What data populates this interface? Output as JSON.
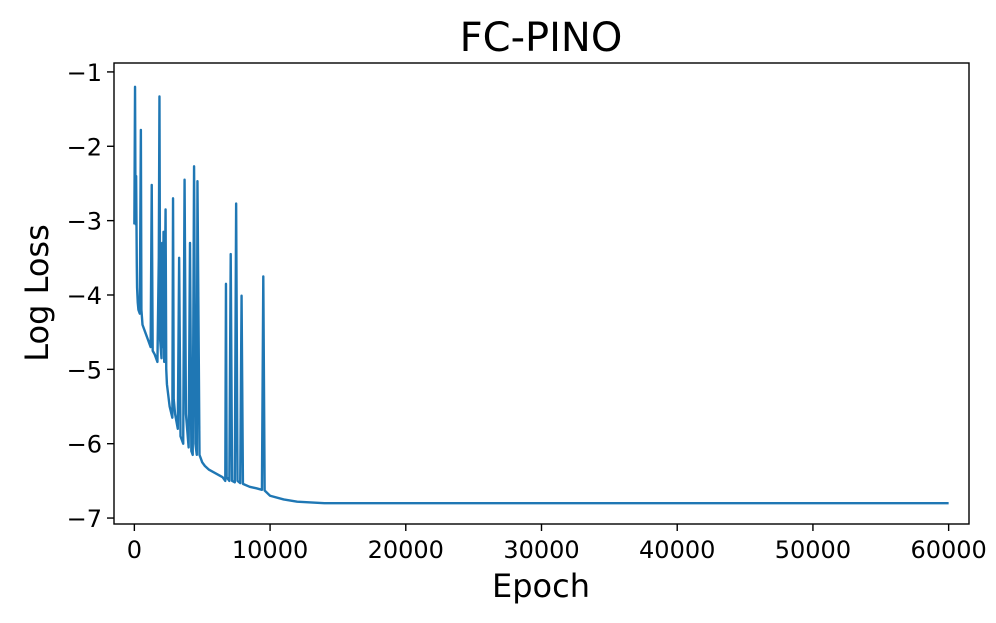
{
  "chart_data": {
    "type": "line",
    "title": "FC-PINO",
    "xlabel": "Epoch",
    "ylabel": "Log Loss",
    "xlim": [
      -1500,
      61500
    ],
    "ylim": [
      -7.08,
      -0.88
    ],
    "xticks": [
      0,
      10000,
      20000,
      30000,
      40000,
      50000,
      60000
    ],
    "xtick_labels": [
      "0",
      "10000",
      "20000",
      "30000",
      "40000",
      "50000",
      "60000"
    ],
    "yticks": [
      -1,
      -2,
      -3,
      -4,
      -5,
      -6,
      -7
    ],
    "ytick_labels": [
      "−1",
      "−2",
      "−3",
      "−4",
      "−5",
      "−6",
      "−7"
    ],
    "grid": false,
    "series": [
      {
        "color": "#1f77b4",
        "x": [
          0,
          50,
          80,
          100,
          130,
          180,
          200,
          250,
          300,
          400,
          480,
          520,
          600,
          800,
          1000,
          1100,
          1200,
          1280,
          1350,
          1500,
          1600,
          1700,
          1800,
          1850,
          1900,
          2000,
          2050,
          2100,
          2150,
          2200,
          2300,
          2350,
          2400,
          2600,
          2800,
          2850,
          2900,
          3000,
          3200,
          3300,
          3400,
          3600,
          3700,
          3800,
          4000,
          4100,
          4200,
          4300,
          4400,
          4500,
          4600,
          4650,
          4800,
          4900,
          5000,
          5200,
          5500,
          6000,
          6500,
          6700,
          6750,
          6800,
          7000,
          7100,
          7200,
          7400,
          7500,
          7600,
          7800,
          7900,
          8000,
          8500,
          9000,
          9400,
          9500,
          9600,
          10000,
          11000,
          12000,
          13000,
          14000,
          15000,
          20000,
          30000,
          40000,
          50000,
          60000
        ],
        "y": [
          -3.05,
          -1.2,
          -2.6,
          -3.05,
          -2.4,
          -3.6,
          -3.9,
          -4.1,
          -4.2,
          -4.25,
          -1.78,
          -4.2,
          -4.4,
          -4.5,
          -4.6,
          -4.65,
          -4.7,
          -2.52,
          -4.75,
          -4.8,
          -4.85,
          -4.9,
          -3.5,
          -1.33,
          -4.6,
          -4.85,
          -3.3,
          -4.7,
          -3.15,
          -4.9,
          -2.85,
          -5.0,
          -5.2,
          -5.5,
          -5.65,
          -2.7,
          -5.4,
          -5.6,
          -5.8,
          -3.5,
          -5.9,
          -6.0,
          -2.45,
          -5.6,
          -6.05,
          -3.3,
          -6.1,
          -6.15,
          -2.27,
          -6.0,
          -6.15,
          -2.47,
          -6.15,
          -6.2,
          -6.25,
          -6.3,
          -6.35,
          -6.4,
          -6.45,
          -6.5,
          -3.85,
          -6.45,
          -6.5,
          -3.45,
          -6.5,
          -6.52,
          -2.77,
          -6.5,
          -6.53,
          -4.01,
          -6.54,
          -6.58,
          -6.6,
          -6.62,
          -3.75,
          -6.63,
          -6.7,
          -6.75,
          -6.78,
          -6.79,
          -6.8,
          -6.8,
          -6.8,
          -6.8,
          -6.8,
          -6.8,
          -6.8
        ]
      }
    ]
  }
}
